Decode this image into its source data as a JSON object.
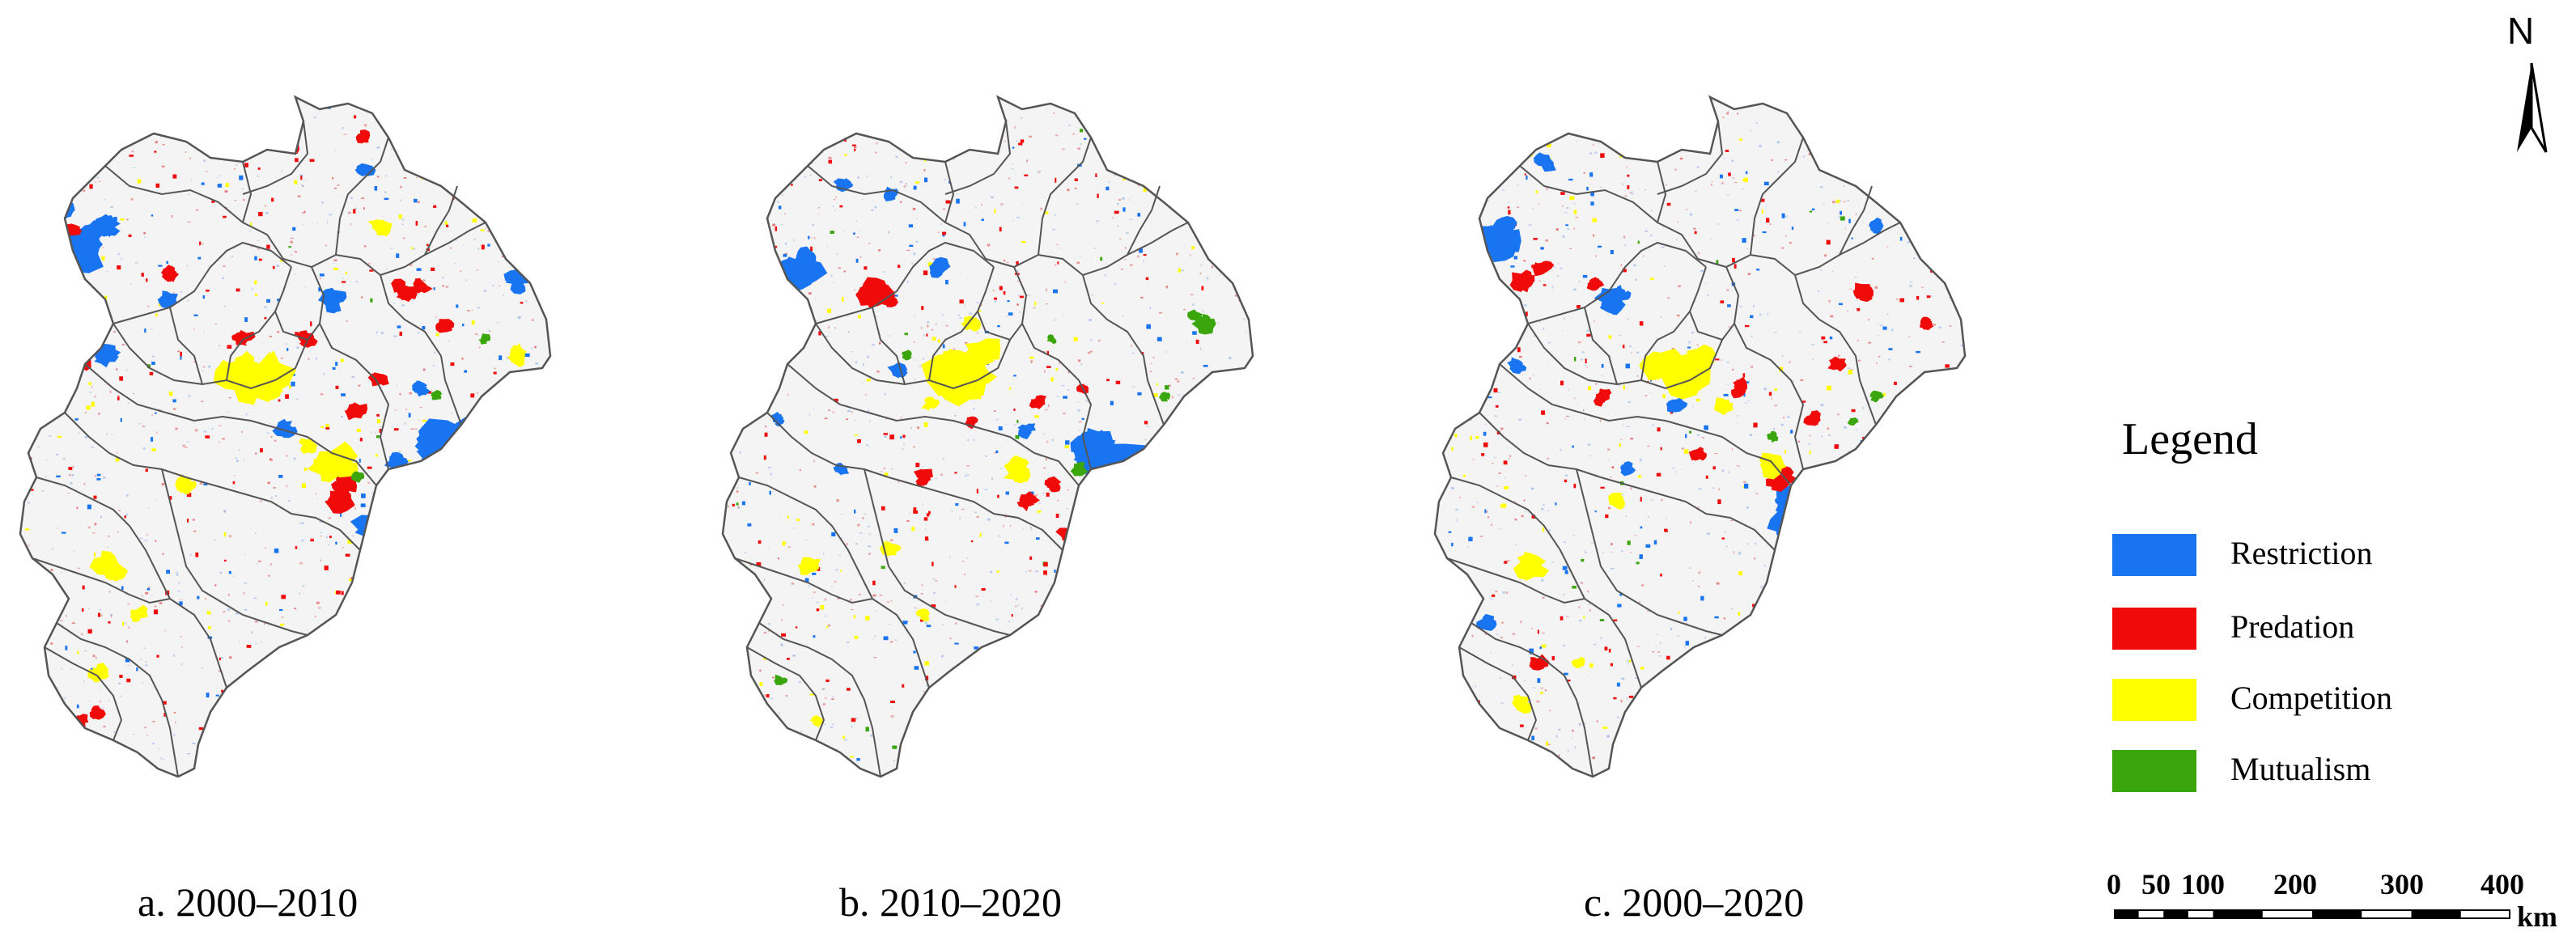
{
  "panels": [
    {
      "id": "a",
      "caption": "a. 2000–2010"
    },
    {
      "id": "b",
      "caption": "b. 2010–2020"
    },
    {
      "id": "c",
      "caption": "c. 2000–2020"
    }
  ],
  "legend": {
    "title": "Legend",
    "items": [
      {
        "label": "Restriction",
        "color": "#1874f0"
      },
      {
        "label": "Predation",
        "color": "#f00a0a"
      },
      {
        "label": "Competition",
        "color": "#ffff00"
      },
      {
        "label": "Mutualism",
        "color": "#3aa60c"
      }
    ]
  },
  "north_arrow": {
    "label": "N",
    "icon": "north-arrow-icon"
  },
  "scale_bar": {
    "ticks": [
      "0",
      "50",
      "100",
      "200",
      "300",
      "400"
    ],
    "values": [
      0,
      50,
      100,
      200,
      300,
      400
    ],
    "unit": "km"
  },
  "colors": {
    "boundary": "#555555",
    "land": "#f4f4f4",
    "faint_red": "#e06060",
    "faint_blue": "#9cb8e8"
  }
}
